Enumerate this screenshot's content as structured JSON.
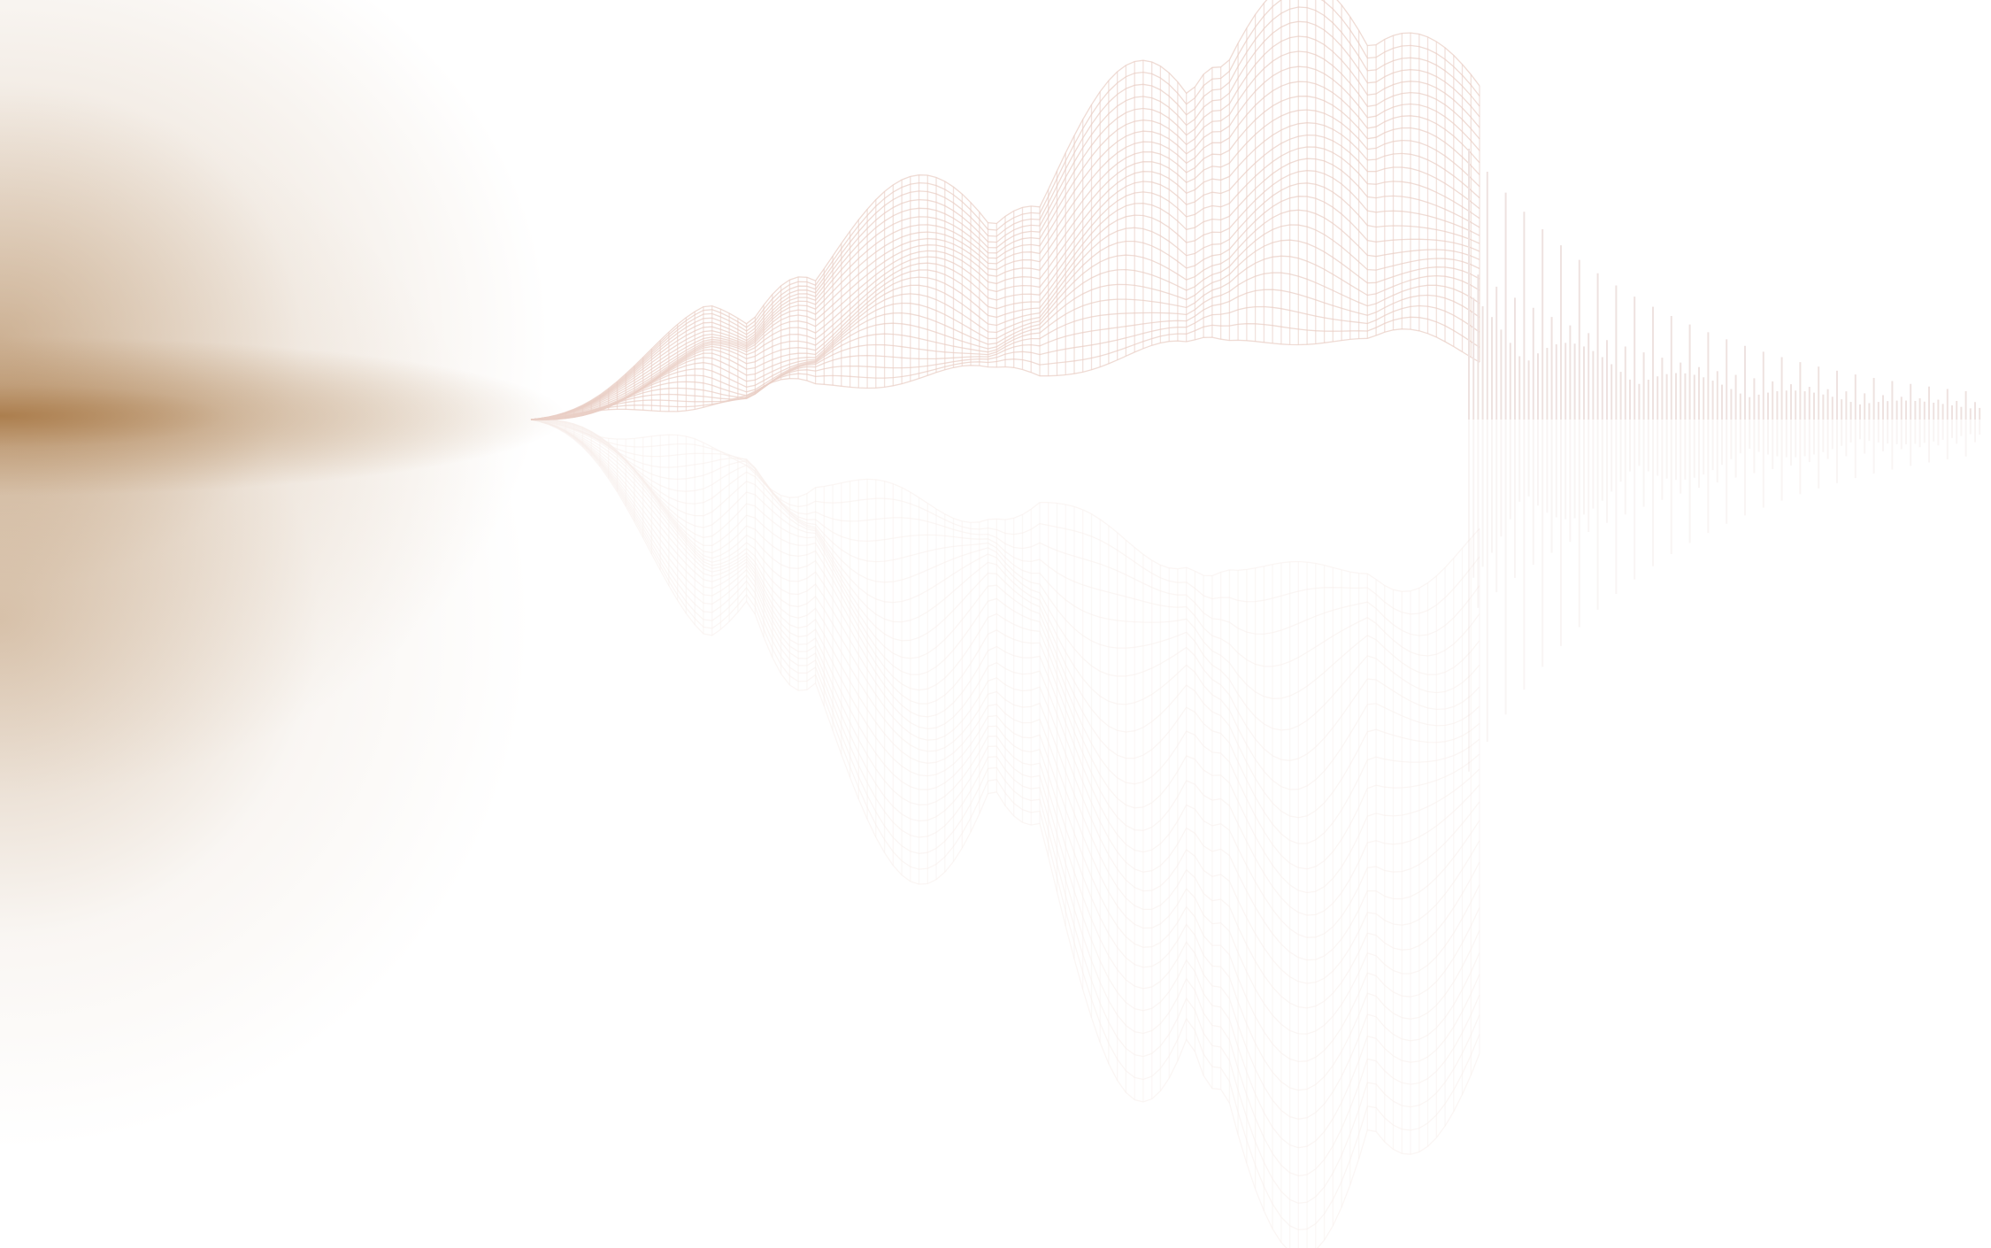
{
  "colors": {
    "background": "#ffffff",
    "glow": "#a97a48",
    "wireframe": "#e9cfc6",
    "bars": "#eee2e0"
  },
  "icons": [
    "wireframe-mountain-graphic",
    "spectrum-bars-graphic"
  ]
}
